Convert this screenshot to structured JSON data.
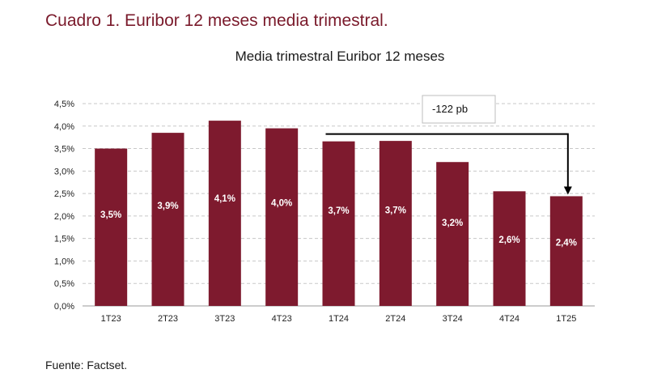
{
  "header": {
    "title": "Cuadro 1. Euribor 12 meses media trimestral."
  },
  "footer": {
    "source": "Fuente: Factset."
  },
  "colors": {
    "bar": "#7e1a2e",
    "header": "#7a1a2b"
  },
  "chart_data": {
    "type": "bar",
    "title": "Media trimestral Euribor 12 meses",
    "xlabel": "",
    "ylabel": "",
    "categories": [
      "1T23",
      "2T23",
      "3T23",
      "4T23",
      "1T24",
      "2T24",
      "3T24",
      "4T24",
      "1T25"
    ],
    "values": [
      3.5,
      3.85,
      4.12,
      3.95,
      3.66,
      3.67,
      3.2,
      2.55,
      2.44
    ],
    "data_labels": [
      "3,5%",
      "3,9%",
      "4,1%",
      "4,0%",
      "3,7%",
      "3,7%",
      "3,2%",
      "2,6%",
      "2,4%"
    ],
    "ylim": [
      0,
      4.5
    ],
    "yticks": [
      0,
      0.5,
      1.0,
      1.5,
      2.0,
      2.5,
      3.0,
      3.5,
      4.0,
      4.5
    ],
    "ytick_labels": [
      "0,0%",
      "0,5%",
      "1,0%",
      "1,5%",
      "2,0%",
      "2,5%",
      "3,0%",
      "3,5%",
      "4,0%",
      "4,5%"
    ],
    "grid": true,
    "annotation": {
      "text": "-122 pb",
      "from_category": "1T24",
      "to_category": "1T25",
      "level": 3.66
    }
  }
}
